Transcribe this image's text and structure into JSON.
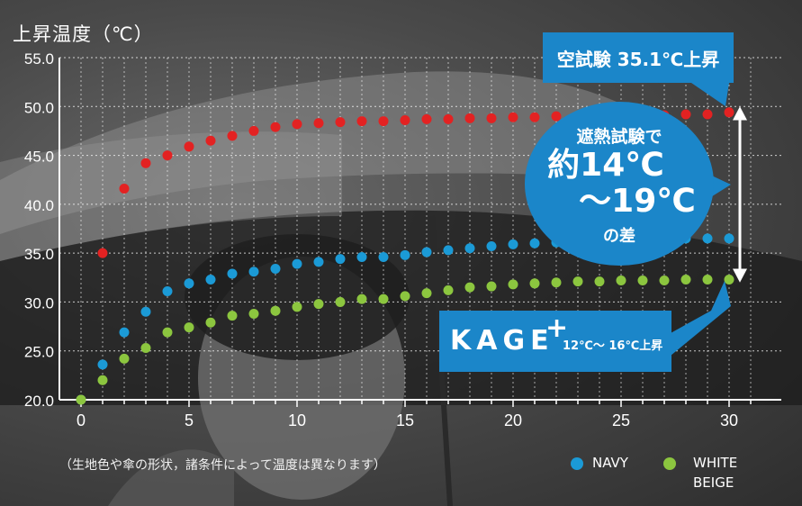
{
  "chart_data": {
    "type": "scatter",
    "title": "",
    "ylabel": "上昇温度（℃）",
    "xlabel": "",
    "xlim": [
      -0.5,
      31.5
    ],
    "ylim": [
      20,
      55
    ],
    "xticks": [
      "0",
      "5",
      "10",
      "15",
      "20",
      "25",
      "30"
    ],
    "yticks": [
      "20.0",
      "25.0",
      "30.0",
      "35.0",
      "40.0",
      "45.0",
      "50.0",
      "55.0"
    ],
    "grid": true,
    "legend_position": "bottom-right",
    "series": [
      {
        "name": "",
        "color": "#e32222",
        "x": [
          0,
          1,
          2,
          3,
          4,
          5,
          6,
          7,
          8,
          9,
          10,
          11,
          12,
          13,
          14,
          15,
          16,
          17,
          18,
          19,
          20,
          21,
          22,
          23,
          24,
          25,
          26,
          27,
          28,
          29,
          30
        ],
        "y": [
          20.0,
          35.0,
          41.6,
          44.2,
          45.0,
          45.9,
          46.5,
          47.0,
          47.5,
          47.9,
          48.2,
          48.3,
          48.4,
          48.5,
          48.5,
          48.6,
          48.7,
          48.7,
          48.8,
          48.8,
          48.9,
          48.9,
          49.0,
          49.0,
          49.0,
          49.1,
          49.1,
          49.1,
          49.2,
          49.2,
          49.4
        ]
      },
      {
        "name": "NAVY",
        "color": "#1b9ad6",
        "x": [
          0,
          1,
          2,
          3,
          4,
          5,
          6,
          7,
          8,
          9,
          10,
          11,
          12,
          13,
          14,
          15,
          16,
          17,
          18,
          19,
          20,
          21,
          22,
          23,
          24,
          25,
          26,
          27,
          28,
          29,
          30
        ],
        "y": [
          20.0,
          23.6,
          26.9,
          29.0,
          31.1,
          31.9,
          32.3,
          32.9,
          33.1,
          33.4,
          33.9,
          34.1,
          34.4,
          34.6,
          34.6,
          34.8,
          35.1,
          35.3,
          35.5,
          35.7,
          35.9,
          36.0,
          36.1,
          36.2,
          36.2,
          36.3,
          36.3,
          36.4,
          36.5,
          36.5,
          36.5
        ]
      },
      {
        "name": "WHITE BEIGE",
        "color": "#8cc63f",
        "x": [
          0,
          1,
          2,
          3,
          4,
          5,
          6,
          7,
          8,
          9,
          10,
          11,
          12,
          13,
          14,
          15,
          16,
          17,
          18,
          19,
          20,
          21,
          22,
          23,
          24,
          25,
          26,
          27,
          28,
          29,
          30
        ],
        "y": [
          20.0,
          22.0,
          24.2,
          25.3,
          26.9,
          27.4,
          27.9,
          28.6,
          28.8,
          29.1,
          29.5,
          29.8,
          30.0,
          30.3,
          30.3,
          30.6,
          30.9,
          31.2,
          31.5,
          31.6,
          31.8,
          31.9,
          32.0,
          32.1,
          32.1,
          32.2,
          32.2,
          32.2,
          32.3,
          32.3,
          32.3
        ]
      }
    ]
  },
  "callout_top": {
    "text": "空試験 35.1℃上昇"
  },
  "bubble": {
    "line1": "遮熱試験で",
    "line2": "約14℃",
    "line3": "～19℃",
    "line4": "の差"
  },
  "kage": {
    "brand": "KAGE",
    "plus": "+",
    "sub": "12℃～ 16℃上昇"
  },
  "footnote": "（生地色や傘の形状，諸条件によって温度は異なります）",
  "legend": {
    "navy": "NAVY",
    "white": "WHITE",
    "beige": "BEIGE"
  },
  "colors": {
    "callout": "#1b86c9",
    "red": "#e32222",
    "blue": "#1b9ad6",
    "green": "#8cc63f"
  }
}
